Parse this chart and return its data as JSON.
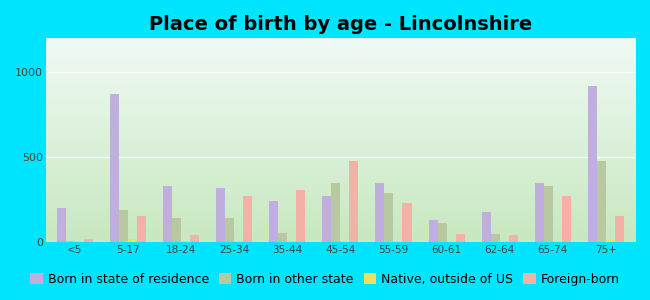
{
  "title": "Place of birth by age - Lincolnshire",
  "categories": [
    "<5",
    "5-17",
    "18-24",
    "25-34",
    "35-44",
    "45-54",
    "55-59",
    "60-61",
    "62-64",
    "65-74",
    "75+"
  ],
  "series": {
    "Born in state of residence": [
      200,
      870,
      330,
      320,
      240,
      270,
      350,
      130,
      180,
      350,
      920
    ],
    "Born in other state": [
      10,
      190,
      140,
      140,
      55,
      350,
      290,
      115,
      50,
      330,
      480
    ],
    "Native, outside of US": [
      5,
      20,
      10,
      10,
      10,
      10,
      10,
      10,
      10,
      10,
      15
    ],
    "Foreign-born": [
      20,
      155,
      40,
      270,
      310,
      480,
      230,
      50,
      40,
      270,
      155
    ]
  },
  "colors": {
    "Born in state of residence": "#c0aede",
    "Born in other state": "#b8c8a0",
    "Native, outside of US": "#f0e060",
    "Foreign-born": "#f5b0a8"
  },
  "ylim": [
    0,
    1200
  ],
  "yticks": [
    0,
    500,
    1000
  ],
  "outer_bg": "#00e5ff",
  "plot_bg_top": "#f0faf5",
  "plot_bg_bottom": "#c8e8c0",
  "title_fontsize": 14,
  "legend_fontsize": 9,
  "bar_width": 0.17
}
